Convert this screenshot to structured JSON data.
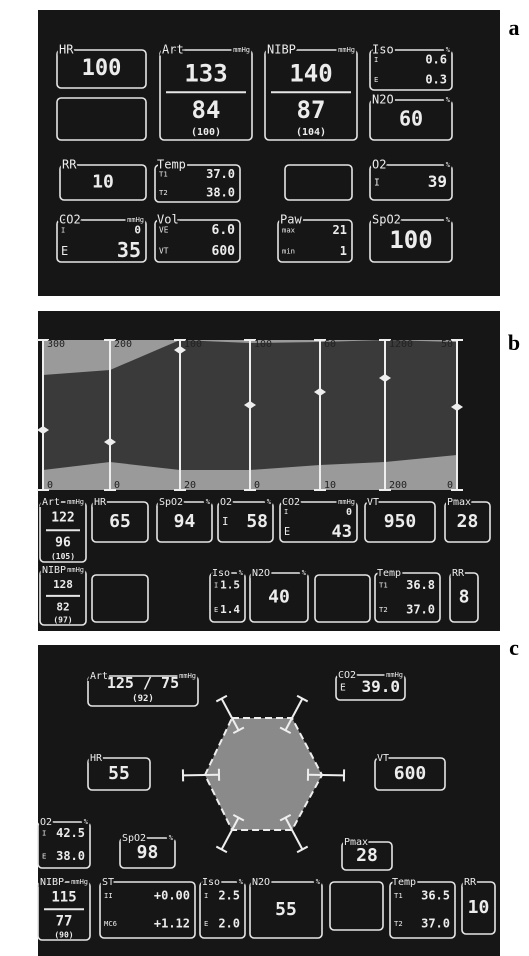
{
  "panels": [
    {
      "label": "a",
      "boxes": [
        {
          "label": "HR",
          "rows": [
            [
              "100"
            ]
          ]
        },
        {
          "rows": []
        },
        {
          "label": "Art",
          "unit": "mmHg",
          "rows": [
            [
              "133"
            ],
            [
              "84"
            ],
            [
              "(100)"
            ]
          ]
        },
        {
          "label": "NIBP",
          "unit": "mmHg",
          "rows": [
            [
              "140"
            ],
            [
              "87"
            ],
            [
              "(104)"
            ]
          ]
        },
        {
          "label": "Iso",
          "unit": "%",
          "rows": [
            [
              "I",
              "0.6"
            ],
            [
              "E",
              "0.3"
            ]
          ]
        },
        {
          "label": "N2O",
          "unit": "%",
          "rows": [
            [
              "60"
            ]
          ]
        },
        {
          "label": "RR",
          "rows": [
            [
              "10"
            ]
          ]
        },
        {
          "label": "Temp",
          "rows": [
            [
              "T1",
              "37.0"
            ],
            [
              "T2",
              "38.0"
            ]
          ]
        },
        {
          "rows": []
        },
        {
          "label": "O2",
          "unit": "%",
          "rows": [
            [
              "I",
              "39"
            ]
          ]
        },
        {
          "label": "CO2",
          "unit": "mmHg",
          "rows": [
            [
              "I",
              "0"
            ],
            [
              "E",
              "35"
            ]
          ]
        },
        {
          "label": "Vol",
          "rows": [
            [
              "VE",
              "6.0"
            ],
            [
              "VT",
              "600"
            ]
          ]
        },
        {
          "label": "Paw",
          "rows": [
            [
              "max",
              "21"
            ],
            [
              "min",
              "1"
            ]
          ]
        },
        {
          "label": "SpO2",
          "unit": "%",
          "rows": [
            [
              "100"
            ]
          ]
        }
      ]
    },
    {
      "label": "b",
      "scales": [
        {
          "top": "300",
          "bottom": "0"
        },
        {
          "top": "200",
          "bottom": "0"
        },
        {
          "top": "100",
          "bottom": "20"
        },
        {
          "top": "100",
          "bottom": "0"
        },
        {
          "top": "60",
          "bottom": "10"
        },
        {
          "top": "1200",
          "bottom": "200"
        },
        {
          "top": "50",
          "bottom": "0"
        }
      ],
      "boxes": [
        {
          "label": "Art",
          "unit": "mmHg",
          "rows": [
            [
              "122"
            ],
            [
              "96"
            ],
            [
              "(105)"
            ]
          ]
        },
        {
          "label": "HR",
          "rows": [
            [
              "65"
            ]
          ]
        },
        {
          "label": "SpO2",
          "unit": "%",
          "rows": [
            [
              "94"
            ]
          ]
        },
        {
          "label": "O2",
          "unit": "%",
          "rows": [
            [
              "I",
              "58"
            ]
          ]
        },
        {
          "label": "CO2",
          "unit": "mmHg",
          "rows": [
            [
              "I",
              "0"
            ],
            [
              "E",
              "43"
            ]
          ]
        },
        {
          "label": "VT",
          "rows": [
            [
              "950"
            ]
          ]
        },
        {
          "label": "Pmax",
          "rows": [
            [
              "28"
            ]
          ]
        },
        {
          "label": "NIBP",
          "unit": "mmHg",
          "rows": [
            [
              "128"
            ],
            [
              "82"
            ],
            [
              "(97)"
            ]
          ]
        },
        {
          "rows": []
        },
        {
          "label": "Iso",
          "unit": "%",
          "rows": [
            [
              "I",
              "1.5"
            ],
            [
              "E",
              "1.4"
            ]
          ]
        },
        {
          "label": "N2O",
          "unit": "%",
          "rows": [
            [
              "40"
            ]
          ]
        },
        {
          "rows": []
        },
        {
          "label": "Temp",
          "rows": [
            [
              "T1",
              "36.8"
            ],
            [
              "T2",
              "37.0"
            ]
          ]
        },
        {
          "label": "RR",
          "rows": [
            [
              "8"
            ]
          ]
        }
      ]
    },
    {
      "label": "c",
      "boxes": [
        {
          "label": "Art",
          "unit": "mmHg",
          "rows": [
            [
              "125 / 75"
            ],
            [
              "(92)"
            ]
          ]
        },
        {
          "label": "CO2",
          "unit": "mmHg",
          "rows": [
            [
              "E",
              "39.0"
            ]
          ]
        },
        {
          "label": "HR",
          "rows": [
            [
              "55"
            ]
          ]
        },
        {
          "label": "VT",
          "rows": [
            [
              "600"
            ]
          ]
        },
        {
          "label": "O2",
          "unit": "%",
          "rows": [
            [
              "I",
              "42.5"
            ],
            [
              "E",
              "38.0"
            ]
          ]
        },
        {
          "label": "SpO2",
          "unit": "%",
          "rows": [
            [
              "98"
            ]
          ]
        },
        {
          "label": "Pmax",
          "rows": [
            [
              "28"
            ]
          ]
        },
        {
          "label": "NIBP",
          "unit": "mmHg",
          "rows": [
            [
              "115"
            ],
            [
              "77"
            ],
            [
              "(90)"
            ]
          ]
        },
        {
          "label": "ST",
          "rows": [
            [
              "II",
              "+0.00"
            ],
            [
              "MC6",
              "+1.12"
            ]
          ]
        },
        {
          "label": "Iso",
          "unit": "%",
          "rows": [
            [
              "I",
              "2.5"
            ],
            [
              "E",
              "2.0"
            ]
          ]
        },
        {
          "label": "N2O",
          "unit": "%",
          "rows": [
            [
              "55"
            ]
          ]
        },
        {
          "rows": []
        },
        {
          "label": "Temp",
          "rows": [
            [
              "T1",
              "36.5"
            ],
            [
              "T2",
              "37.0"
            ]
          ]
        },
        {
          "label": "RR",
          "rows": [
            [
              "10"
            ]
          ]
        }
      ]
    }
  ]
}
